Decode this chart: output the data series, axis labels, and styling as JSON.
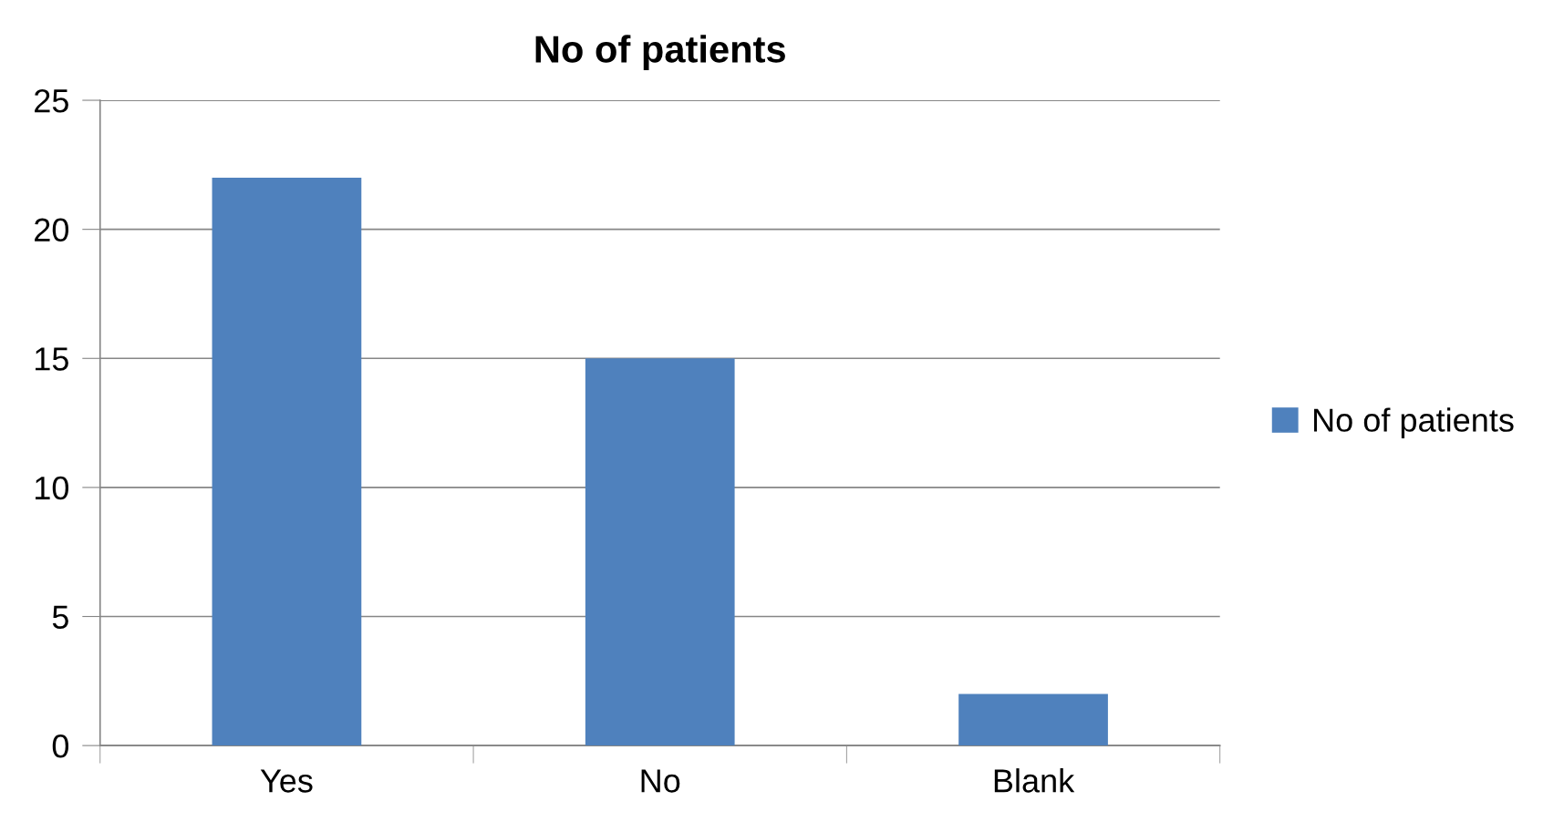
{
  "chart_data": {
    "type": "bar",
    "title": "No of patients",
    "categories": [
      "Yes",
      "No",
      "Blank"
    ],
    "series": [
      {
        "name": "No of patients",
        "color": "#4f81bd",
        "values": [
          22,
          15,
          2
        ]
      }
    ],
    "ylim": [
      0,
      25
    ],
    "yticks": [
      0,
      5,
      10,
      15,
      20,
      25
    ],
    "grid": "y",
    "legend": "right"
  }
}
